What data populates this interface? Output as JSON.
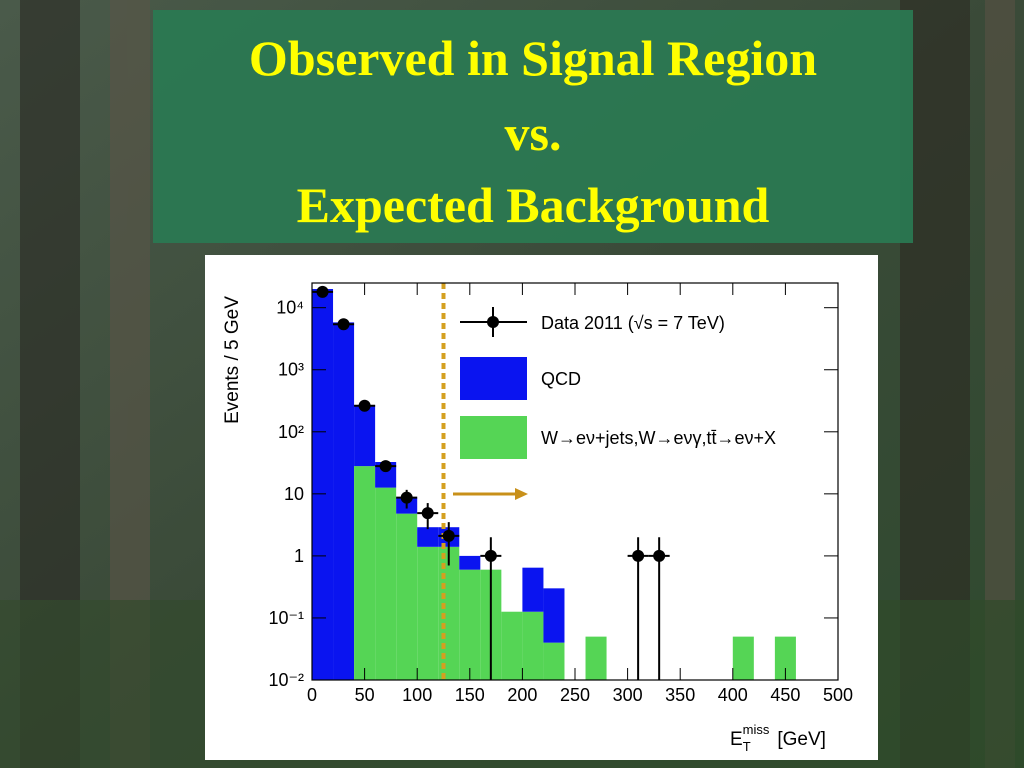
{
  "slide": {
    "title_lines": [
      "Observed in Signal Region",
      "vs.",
      "Expected Background"
    ]
  },
  "chart_data": {
    "type": "stacked_histogram_log",
    "ylabel": "Events / 5 GeV",
    "xlabel": {
      "base": "E",
      "sub": "T",
      "sup": "miss",
      "unit": "[GeV]"
    },
    "xlim": [
      0,
      500
    ],
    "xticks": [
      0,
      50,
      100,
      150,
      200,
      250,
      300,
      350,
      400,
      450,
      500
    ],
    "ylim": [
      0.01,
      25000
    ],
    "log_y": true,
    "yticks": [
      {
        "value": 0.01,
        "label": "10⁻²"
      },
      {
        "value": 0.1,
        "label": "10⁻¹"
      },
      1,
      10,
      {
        "value": 100,
        "label": "10²"
      },
      {
        "value": 1000,
        "label": "10³"
      },
      {
        "value": 10000,
        "label": "10⁴"
      }
    ],
    "bins": [
      0,
      20,
      40,
      60,
      80,
      100,
      120,
      140,
      160,
      180,
      200,
      220,
      240,
      260,
      280,
      300,
      320,
      340,
      360,
      380,
      400,
      420,
      440,
      460
    ],
    "series": [
      {
        "name": "W→eν+jets,W→eνγ,tt̄→eν+X",
        "color": "#55d555",
        "values": [
          null,
          null,
          28,
          12.6,
          4.8,
          1.4,
          1.4,
          0.6,
          0.6,
          0.126,
          0.126,
          0.04,
          null,
          0.05,
          null,
          null,
          null,
          null,
          null,
          null,
          0.05,
          null,
          0.05
        ]
      },
      {
        "name": "QCD",
        "color": "#0a14f0",
        "values": [
          20000,
          5800,
          242,
          20,
          3.9,
          1.5,
          1.5,
          0.4,
          null,
          null,
          0.52,
          0.26,
          null,
          null,
          null,
          null,
          null,
          null,
          null,
          null,
          null,
          null,
          null
        ]
      }
    ],
    "data_points": {
      "name": "Data 2011 (√s = 7 TeV)",
      "color": "#000000",
      "x": [
        10,
        30,
        50,
        70,
        90,
        110,
        130,
        170,
        310,
        330
      ],
      "values": [
        18000,
        5400,
        263,
        28,
        8.7,
        4.9,
        2.1,
        1,
        1,
        1
      ],
      "errors": [
        134,
        73,
        16,
        5.3,
        2.9,
        2.2,
        1.4,
        1,
        1,
        1
      ]
    },
    "cut_line": {
      "x": 125,
      "color": "#d4a020"
    },
    "legend": "upper right"
  }
}
